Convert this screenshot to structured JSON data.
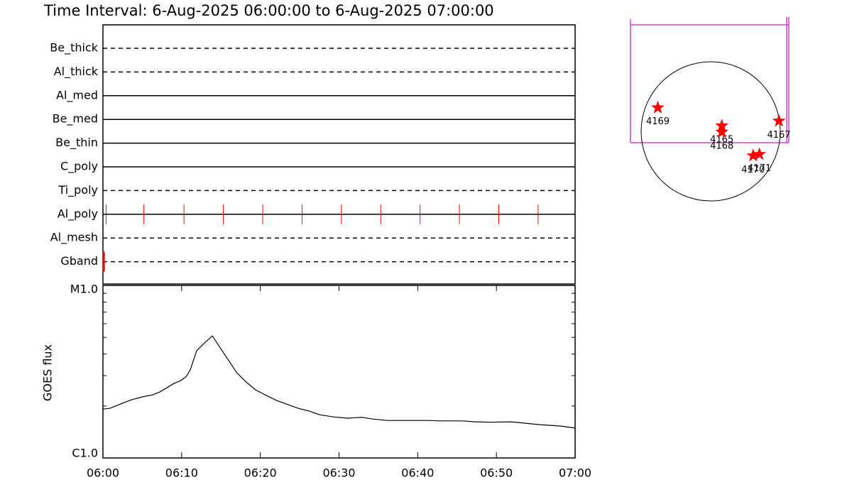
{
  "title": "Time Interval:  6-Aug-2025 06:00:00 to  6-Aug-2025 07:00:00",
  "chart_data": [
    {
      "type": "timeline",
      "categories": [
        "Be_thick",
        "Al_thick",
        "Al_med",
        "Be_med",
        "Be_thin",
        "C_poly",
        "Ti_poly",
        "Al_poly",
        "Al_mesh",
        "Gband"
      ],
      "styles": [
        "dashed",
        "dashed",
        "solid",
        "solid",
        "solid",
        "solid",
        "dashed",
        "solid",
        "dashed",
        "dashed"
      ],
      "events": [
        {
          "row": 7,
          "x": [
            0.4,
            5.2,
            10.3,
            15.3,
            20.3,
            25.3,
            30.3,
            35.3,
            40.3,
            45.3,
            50.3,
            55.3
          ]
        },
        {
          "row": 9,
          "x": [
            0.1
          ]
        }
      ],
      "color": "#ff0000",
      "xlim": [
        0,
        60
      ]
    },
    {
      "type": "line",
      "ylabel": "GOES flux",
      "x": [
        0,
        0.9,
        2.3,
        3.6,
        5.0,
        6.3,
        7.2,
        8.1,
        9.0,
        9.9,
        10.6,
        11.1,
        11.9,
        12.9,
        13.9,
        14.9,
        16.0,
        17.0,
        18.1,
        19.4,
        20.8,
        22.1,
        23.5,
        24.8,
        26.2,
        27.5,
        29.3,
        31.1,
        32.9,
        34.3,
        36.1,
        38.4,
        41.1,
        42.9,
        45.6,
        47.4,
        49.2,
        51.9,
        53.7,
        55.5,
        58.2,
        60
      ],
      "values": [
        1.92e-06,
        1.94e-06,
        2.06e-06,
        2.17e-06,
        2.26e-06,
        2.32e-06,
        2.41e-06,
        2.55e-06,
        2.7e-06,
        2.81e-06,
        2.97e-06,
        3.24e-06,
        4.18e-06,
        4.64e-06,
        5.1e-06,
        4.35e-06,
        3.66e-06,
        3.12e-06,
        2.78e-06,
        2.48e-06,
        2.3e-06,
        2.15e-06,
        2.04e-06,
        1.94e-06,
        1.87e-06,
        1.78e-06,
        1.73e-06,
        1.7e-06,
        1.72e-06,
        1.68e-06,
        1.65e-06,
        1.65e-06,
        1.65e-06,
        1.64e-06,
        1.64e-06,
        1.62e-06,
        1.61e-06,
        1.62e-06,
        1.59e-06,
        1.56e-06,
        1.53e-06,
        1.49e-06
      ],
      "color": "#000000",
      "xlim": [
        0,
        60
      ],
      "xticks": [
        {
          "value": 0,
          "label": "06:00"
        },
        {
          "value": 10,
          "label": "06:10"
        },
        {
          "value": 20,
          "label": "06:20"
        },
        {
          "value": 30,
          "label": "06:30"
        },
        {
          "value": 40,
          "label": "06:40"
        },
        {
          "value": 50,
          "label": "06:50"
        },
        {
          "value": 60,
          "label": "07:00"
        }
      ],
      "ylim": [
        1e-06,
        1e-05
      ],
      "log": true,
      "yticks": [
        {
          "value": 1e-05,
          "label": "M1.0"
        },
        {
          "value": 1e-06,
          "label": "C1.0"
        }
      ],
      "minor_yticks": [
        2e-06,
        3e-06,
        4e-06,
        5e-06,
        6e-06,
        7e-06,
        8e-06,
        9e-06
      ]
    },
    {
      "type": "map",
      "color": "#ff0000",
      "regions": [
        {
          "name": "4169",
          "x": -0.76,
          "y": 0.34
        },
        {
          "name": "4165",
          "x": 0.16,
          "y": 0.08
        },
        {
          "name": "4168",
          "x": 0.16,
          "y": -0.01
        },
        {
          "name": "4167",
          "x": 0.98,
          "y": 0.15
        },
        {
          "name": "4170",
          "x": 0.61,
          "y": -0.35
        },
        {
          "name": "4171",
          "x": 0.7,
          "y": -0.33
        }
      ]
    }
  ]
}
